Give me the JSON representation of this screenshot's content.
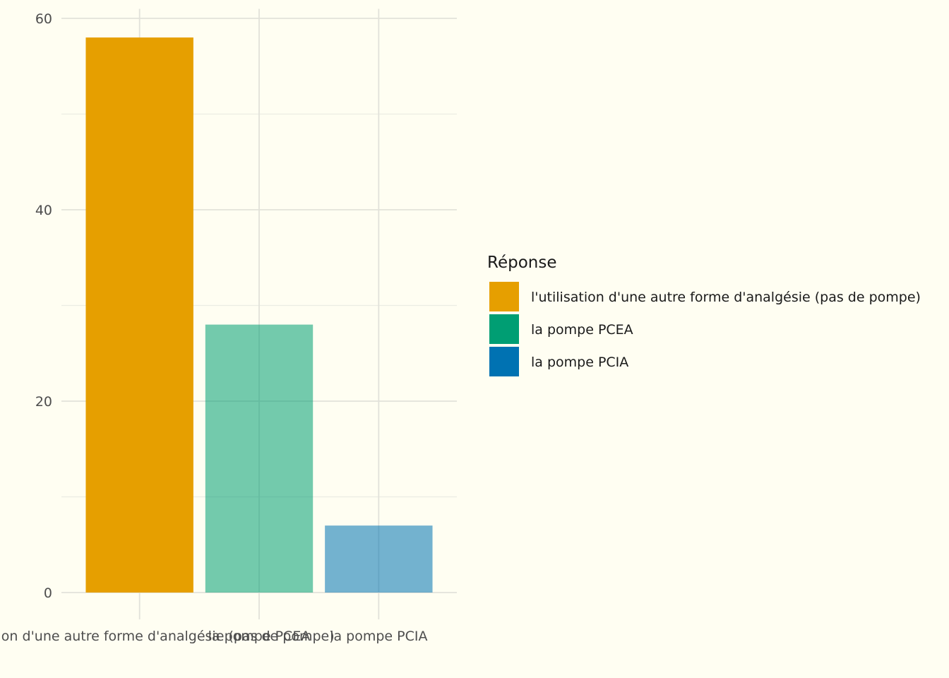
{
  "chart_data": {
    "type": "bar",
    "categories": [
      "l'utilisation d'une autre forme d'analgésie (pas de pompe)",
      "la pompe PCEA",
      "la pompe PCIA"
    ],
    "values": [
      58,
      28,
      7
    ],
    "colors": [
      "#E69F00",
      "#009E73",
      "#0072B2"
    ],
    "bar_opacity": [
      1.0,
      0.55,
      0.55
    ],
    "title": "",
    "xlabel": "",
    "ylabel": "",
    "ylim": [
      0,
      61
    ],
    "yticks": [
      0,
      20,
      40,
      60
    ],
    "grid": true,
    "legend": {
      "title": "Réponse",
      "position": "right",
      "items": [
        {
          "label": "l'utilisation d'une autre forme d'analgésie (pas de pompe)",
          "color": "#E69F00"
        },
        {
          "label": "la pompe PCEA",
          "color": "#009E73"
        },
        {
          "label": "la pompe PCIA",
          "color": "#0072B2"
        }
      ]
    }
  }
}
